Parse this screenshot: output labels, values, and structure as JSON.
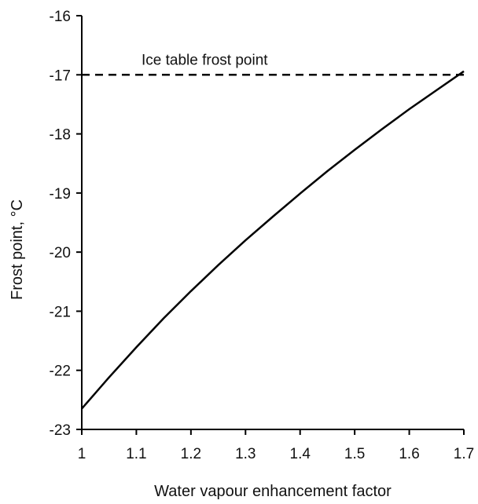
{
  "chart_data": {
    "type": "line",
    "title": "",
    "xlabel": "Water vapour enhancement factor",
    "ylabel": "Frost point, °C",
    "xlim": [
      1,
      1.7
    ],
    "ylim": [
      -23,
      -16
    ],
    "x_ticks": [
      1,
      1.1,
      1.2,
      1.3,
      1.4,
      1.5,
      1.6,
      1.7
    ],
    "y_ticks": [
      -16,
      -17,
      -18,
      -19,
      -20,
      -21,
      -22,
      -23
    ],
    "x_tick_labels": [
      "1",
      "1.1",
      "1.2",
      "1.3",
      "1.4",
      "1.5",
      "1.6",
      "1.7"
    ],
    "y_tick_labels": [
      "-16",
      "-17",
      "-18",
      "-19",
      "-20",
      "-21",
      "-22",
      "-23"
    ],
    "grid": false,
    "legend": "none",
    "series": [
      {
        "x": [
          1.0,
          1.05,
          1.1,
          1.15,
          1.2,
          1.25,
          1.3,
          1.35,
          1.4,
          1.45,
          1.5,
          1.55,
          1.6,
          1.65,
          1.7
        ],
        "y": [
          -22.65,
          -22.12,
          -21.61,
          -21.12,
          -20.66,
          -20.22,
          -19.8,
          -19.4,
          -19.01,
          -18.63,
          -18.27,
          -17.92,
          -17.58,
          -17.26,
          -16.94
        ],
        "color": "#000000",
        "style": "solid"
      }
    ],
    "reference_lines": [
      {
        "y": -17,
        "label": "Ice table frost point",
        "style": "dashed",
        "color": "#000000"
      }
    ]
  }
}
